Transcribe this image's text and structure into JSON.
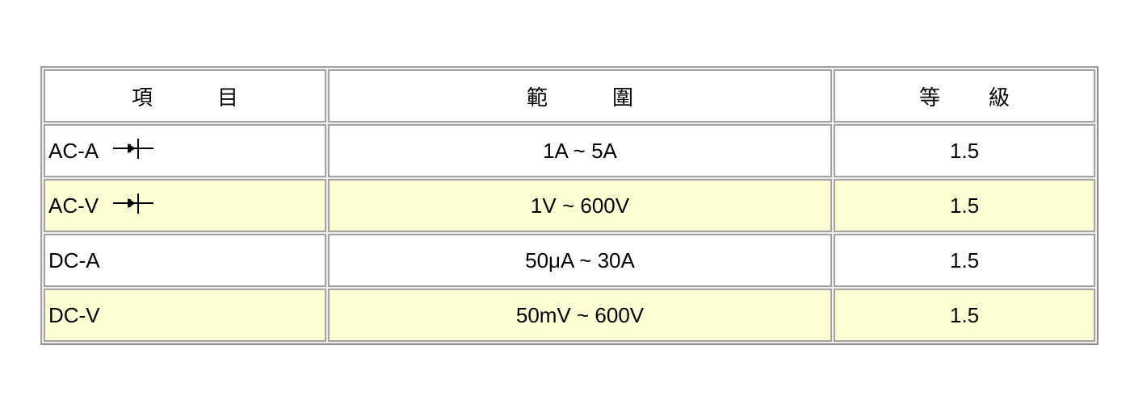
{
  "table": {
    "headers": [
      {
        "chars": [
          "項",
          "目"
        ]
      },
      {
        "chars": [
          "範",
          "圍"
        ]
      },
      {
        "chars": [
          "等",
          "級"
        ]
      }
    ],
    "rows": [
      {
        "item": "AC-A",
        "icon": "diode-icon",
        "range": "1A ~ 5A",
        "grade": "1.5",
        "highlight": false
      },
      {
        "item": "AC-V",
        "icon": "diode-icon",
        "range": "1V ~ 600V",
        "grade": "1.5",
        "highlight": true
      },
      {
        "item": "DC-A",
        "icon": null,
        "range": "50μA ~ 30A",
        "grade": "1.5",
        "highlight": false
      },
      {
        "item": "DC-V",
        "icon": null,
        "range": "50mV ~ 600V",
        "grade": "1.5",
        "highlight": true
      }
    ]
  },
  "colors": {
    "highlight_row": "#ffffd5",
    "border": "#a3a3a3"
  }
}
